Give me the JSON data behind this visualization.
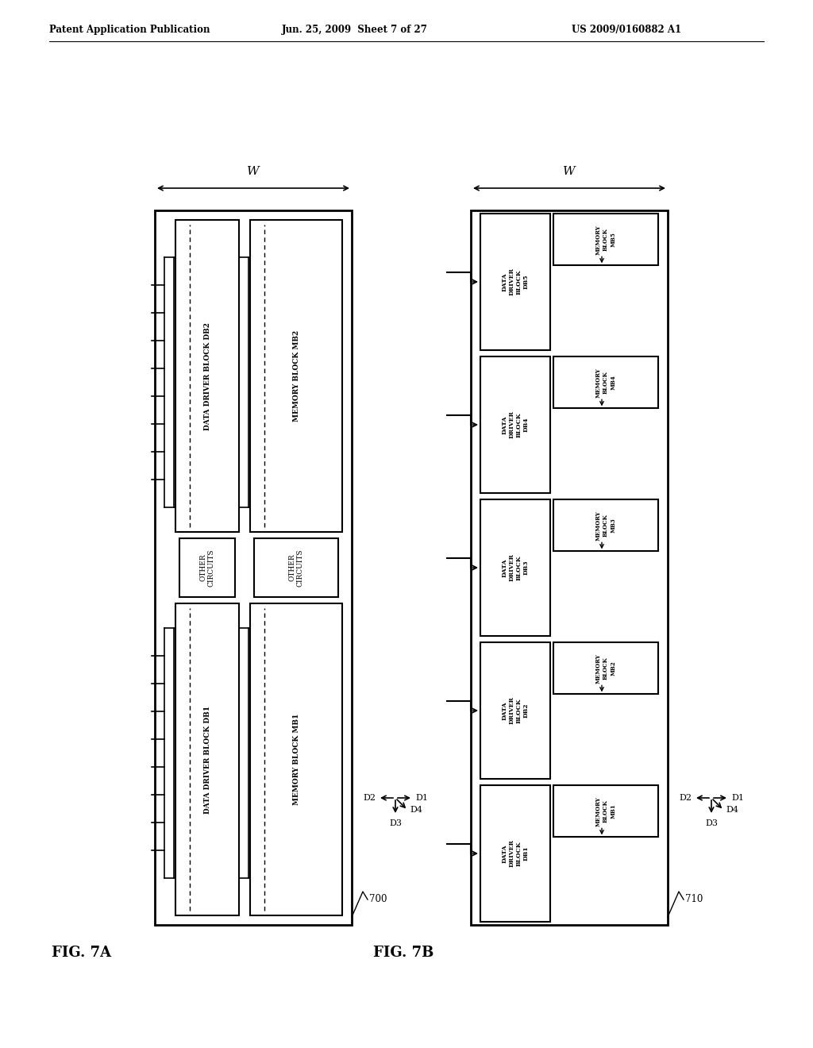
{
  "title_left": "Patent Application Publication",
  "title_mid": "Jun. 25, 2009  Sheet 7 of 27",
  "title_right": "US 2009/0160882 A1",
  "fig7a_label": "FIG. 7A",
  "fig7b_label": "FIG. 7B",
  "bg_color": "#ffffff",
  "line_color": "#000000"
}
